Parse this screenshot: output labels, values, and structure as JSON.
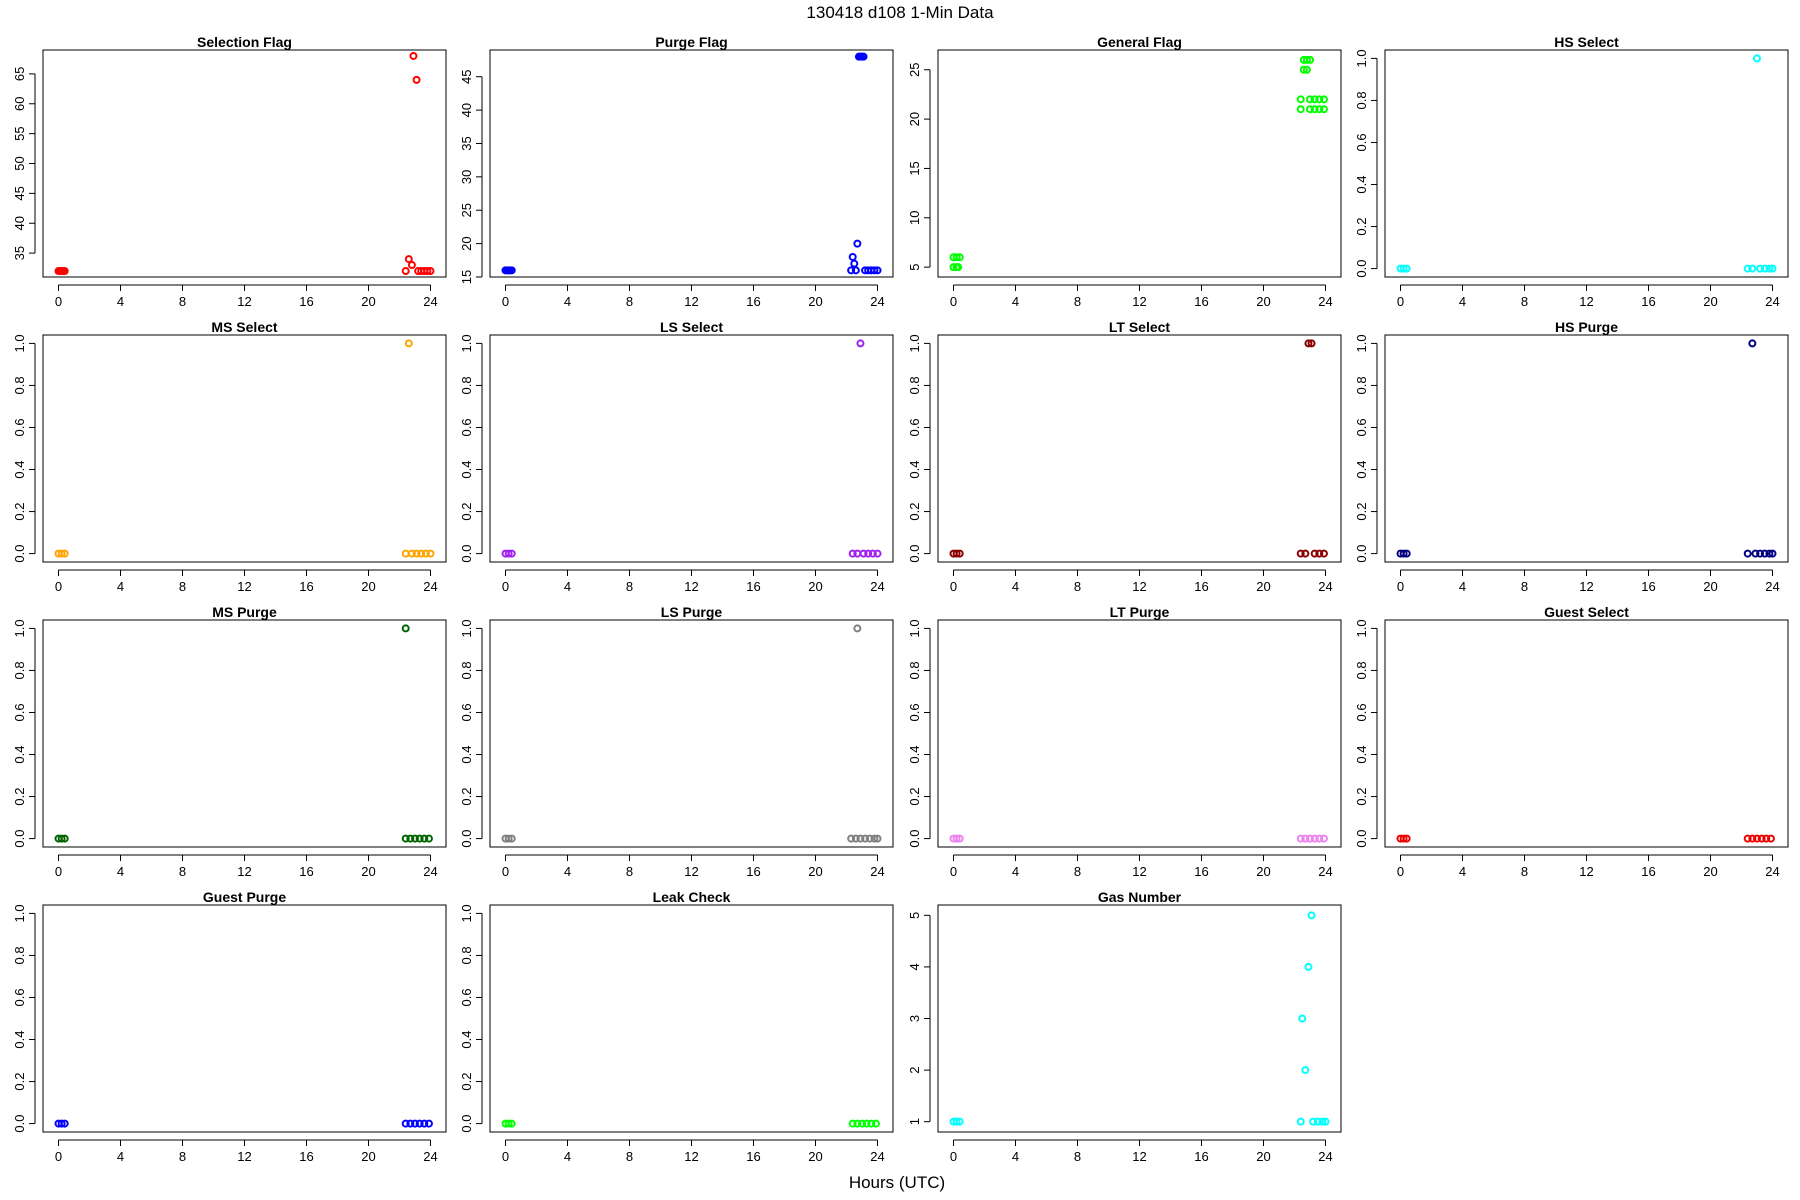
{
  "figure": {
    "title": "130418   d108   1-Min Data",
    "xlabel": "Hours (UTC)"
  },
  "chart_data": [
    {
      "type": "scatter",
      "title": "Selection Flag",
      "color": "#ff0000",
      "xlim": [
        -1,
        25
      ],
      "ylim": [
        31,
        69
      ],
      "x_ticks": [
        0,
        4,
        8,
        12,
        16,
        20,
        24
      ],
      "y_ticks": [
        35,
        40,
        45,
        50,
        55,
        60,
        65
      ],
      "points": [
        [
          0.0,
          32
        ],
        [
          0.1,
          32
        ],
        [
          0.2,
          32
        ],
        [
          0.3,
          32
        ],
        [
          0.4,
          32
        ],
        [
          22.4,
          32
        ],
        [
          22.6,
          34
        ],
        [
          22.8,
          33
        ],
        [
          22.9,
          68
        ],
        [
          23.1,
          64
        ],
        [
          23.2,
          32
        ],
        [
          23.4,
          32
        ],
        [
          23.6,
          32
        ],
        [
          23.8,
          32
        ],
        [
          24.0,
          32
        ]
      ]
    },
    {
      "type": "scatter",
      "title": "Purge Flag",
      "color": "#0000ff",
      "xlim": [
        -1,
        25
      ],
      "ylim": [
        15,
        49
      ],
      "x_ticks": [
        0,
        4,
        8,
        12,
        16,
        20,
        24
      ],
      "y_ticks": [
        15,
        20,
        25,
        30,
        35,
        40,
        45
      ],
      "points": [
        [
          0.0,
          16
        ],
        [
          0.1,
          16
        ],
        [
          0.2,
          16
        ],
        [
          0.3,
          16
        ],
        [
          0.4,
          16
        ],
        [
          22.3,
          16
        ],
        [
          22.4,
          18
        ],
        [
          22.5,
          17
        ],
        [
          22.6,
          16
        ],
        [
          22.7,
          20
        ],
        [
          22.8,
          48
        ],
        [
          22.9,
          48
        ],
        [
          23.0,
          48
        ],
        [
          23.1,
          48
        ],
        [
          23.2,
          16
        ],
        [
          23.4,
          16
        ],
        [
          23.6,
          16
        ],
        [
          23.8,
          16
        ],
        [
          24.0,
          16
        ]
      ]
    },
    {
      "type": "scatter",
      "title": "General Flag",
      "color": "#00ff00",
      "xlim": [
        -1,
        25
      ],
      "ylim": [
        4,
        27
      ],
      "x_ticks": [
        0,
        4,
        8,
        12,
        16,
        20,
        24
      ],
      "y_ticks": [
        5,
        10,
        15,
        20,
        25
      ],
      "points": [
        [
          0.0,
          5
        ],
        [
          0.2,
          5
        ],
        [
          0.3,
          5
        ],
        [
          0.0,
          6
        ],
        [
          0.2,
          6
        ],
        [
          0.4,
          6
        ],
        [
          22.4,
          22
        ],
        [
          22.4,
          21
        ],
        [
          22.6,
          26
        ],
        [
          22.8,
          26
        ],
        [
          23.0,
          26
        ],
        [
          22.6,
          25
        ],
        [
          22.8,
          25
        ],
        [
          23.0,
          22
        ],
        [
          23.3,
          22
        ],
        [
          23.6,
          22
        ],
        [
          23.9,
          22
        ],
        [
          23.0,
          21
        ],
        [
          23.3,
          21
        ],
        [
          23.6,
          21
        ],
        [
          23.9,
          21
        ]
      ]
    },
    {
      "type": "scatter",
      "title": "HS Select",
      "color": "#00ffff",
      "xlim": [
        -1,
        25
      ],
      "ylim": [
        -0.04,
        1.04
      ],
      "x_ticks": [
        0,
        4,
        8,
        12,
        16,
        20,
        24
      ],
      "y_ticks": [
        0.0,
        0.2,
        0.4,
        0.6,
        0.8,
        1.0
      ],
      "points": [
        [
          0.0,
          0
        ],
        [
          0.2,
          0
        ],
        [
          0.4,
          0
        ],
        [
          22.4,
          0
        ],
        [
          22.7,
          0
        ],
        [
          23.0,
          1
        ],
        [
          23.2,
          0
        ],
        [
          23.5,
          0
        ],
        [
          23.8,
          0
        ],
        [
          24.0,
          0
        ]
      ]
    },
    {
      "type": "scatter",
      "title": "MS Select",
      "color": "#ffa500",
      "xlim": [
        -1,
        25
      ],
      "ylim": [
        -0.04,
        1.04
      ],
      "x_ticks": [
        0,
        4,
        8,
        12,
        16,
        20,
        24
      ],
      "y_ticks": [
        0.0,
        0.2,
        0.4,
        0.6,
        0.8,
        1.0
      ],
      "points": [
        [
          0.0,
          0
        ],
        [
          0.2,
          0
        ],
        [
          0.4,
          0
        ],
        [
          22.4,
          0
        ],
        [
          22.6,
          1
        ],
        [
          22.8,
          0
        ],
        [
          23.1,
          0
        ],
        [
          23.4,
          0
        ],
        [
          23.7,
          0
        ],
        [
          24.0,
          0
        ]
      ]
    },
    {
      "type": "scatter",
      "title": "LS Select",
      "color": "#a020f0",
      "xlim": [
        -1,
        25
      ],
      "ylim": [
        -0.04,
        1.04
      ],
      "x_ticks": [
        0,
        4,
        8,
        12,
        16,
        20,
        24
      ],
      "y_ticks": [
        0.0,
        0.2,
        0.4,
        0.6,
        0.8,
        1.0
      ],
      "points": [
        [
          0.0,
          0
        ],
        [
          0.2,
          0
        ],
        [
          0.4,
          0
        ],
        [
          22.4,
          0
        ],
        [
          22.7,
          0
        ],
        [
          22.9,
          1
        ],
        [
          23.1,
          0
        ],
        [
          23.4,
          0
        ],
        [
          23.7,
          0
        ],
        [
          24.0,
          0
        ]
      ]
    },
    {
      "type": "scatter",
      "title": "LT Select",
      "color": "#8b0000",
      "xlim": [
        -1,
        25
      ],
      "ylim": [
        -0.04,
        1.04
      ],
      "x_ticks": [
        0,
        4,
        8,
        12,
        16,
        20,
        24
      ],
      "y_ticks": [
        0.0,
        0.2,
        0.4,
        0.6,
        0.8,
        1.0
      ],
      "points": [
        [
          0.0,
          0
        ],
        [
          0.2,
          0
        ],
        [
          0.4,
          0
        ],
        [
          22.4,
          0
        ],
        [
          22.7,
          0
        ],
        [
          22.9,
          1
        ],
        [
          23.1,
          1
        ],
        [
          23.3,
          0
        ],
        [
          23.6,
          0
        ],
        [
          23.9,
          0
        ]
      ]
    },
    {
      "type": "scatter",
      "title": "HS Purge",
      "color": "#000080",
      "xlim": [
        -1,
        25
      ],
      "ylim": [
        -0.04,
        1.04
      ],
      "x_ticks": [
        0,
        4,
        8,
        12,
        16,
        20,
        24
      ],
      "y_ticks": [
        0.0,
        0.2,
        0.4,
        0.6,
        0.8,
        1.0
      ],
      "points": [
        [
          0.0,
          0
        ],
        [
          0.2,
          0
        ],
        [
          0.4,
          0
        ],
        [
          22.4,
          0
        ],
        [
          22.7,
          1
        ],
        [
          22.9,
          0
        ],
        [
          23.2,
          0
        ],
        [
          23.5,
          0
        ],
        [
          23.8,
          0
        ],
        [
          24.0,
          0
        ]
      ]
    },
    {
      "type": "scatter",
      "title": "MS Purge",
      "color": "#006400",
      "xlim": [
        -1,
        25
      ],
      "ylim": [
        -0.04,
        1.04
      ],
      "x_ticks": [
        0,
        4,
        8,
        12,
        16,
        20,
        24
      ],
      "y_ticks": [
        0.0,
        0.2,
        0.4,
        0.6,
        0.8,
        1.0
      ],
      "points": [
        [
          0.0,
          0
        ],
        [
          0.2,
          0
        ],
        [
          0.4,
          0
        ],
        [
          22.4,
          0
        ],
        [
          22.4,
          1
        ],
        [
          22.7,
          0
        ],
        [
          23.0,
          0
        ],
        [
          23.3,
          0
        ],
        [
          23.6,
          0
        ],
        [
          23.9,
          0
        ]
      ]
    },
    {
      "type": "scatter",
      "title": "LS Purge",
      "color": "#808080",
      "xlim": [
        -1,
        25
      ],
      "ylim": [
        -0.04,
        1.04
      ],
      "x_ticks": [
        0,
        4,
        8,
        12,
        16,
        20,
        24
      ],
      "y_ticks": [
        0.0,
        0.2,
        0.4,
        0.6,
        0.8,
        1.0
      ],
      "points": [
        [
          0.0,
          0
        ],
        [
          0.2,
          0
        ],
        [
          0.4,
          0
        ],
        [
          22.3,
          0
        ],
        [
          22.6,
          0
        ],
        [
          22.7,
          1
        ],
        [
          22.9,
          0
        ],
        [
          23.2,
          0
        ],
        [
          23.5,
          0
        ],
        [
          23.8,
          0
        ],
        [
          24.0,
          0
        ]
      ]
    },
    {
      "type": "scatter",
      "title": "LT Purge",
      "color": "#ee82ee",
      "xlim": [
        -1,
        25
      ],
      "ylim": [
        -0.04,
        1.04
      ],
      "x_ticks": [
        0,
        4,
        8,
        12,
        16,
        20,
        24
      ],
      "y_ticks": [
        0.0,
        0.2,
        0.4,
        0.6,
        0.8,
        1.0
      ],
      "points": [
        [
          0.0,
          0
        ],
        [
          0.2,
          0
        ],
        [
          0.4,
          0
        ],
        [
          22.4,
          0
        ],
        [
          22.7,
          0
        ],
        [
          23.0,
          0
        ],
        [
          23.3,
          0
        ],
        [
          23.6,
          0
        ],
        [
          23.9,
          0
        ]
      ]
    },
    {
      "type": "scatter",
      "title": "Guest Select",
      "color": "#ee0000",
      "xlim": [
        -1,
        25
      ],
      "ylim": [
        -0.04,
        1.04
      ],
      "x_ticks": [
        0,
        4,
        8,
        12,
        16,
        20,
        24
      ],
      "y_ticks": [
        0.0,
        0.2,
        0.4,
        0.6,
        0.8,
        1.0
      ],
      "points": [
        [
          0.0,
          0
        ],
        [
          0.2,
          0
        ],
        [
          0.4,
          0
        ],
        [
          22.4,
          0
        ],
        [
          22.7,
          0
        ],
        [
          23.0,
          0
        ],
        [
          23.3,
          0
        ],
        [
          23.6,
          0
        ],
        [
          23.9,
          0
        ]
      ]
    },
    {
      "type": "scatter",
      "title": "Guest Purge",
      "color": "#0000ff",
      "xlim": [
        -1,
        25
      ],
      "ylim": [
        -0.04,
        1.04
      ],
      "x_ticks": [
        0,
        4,
        8,
        12,
        16,
        20,
        24
      ],
      "y_ticks": [
        0.0,
        0.2,
        0.4,
        0.6,
        0.8,
        1.0
      ],
      "points": [
        [
          0.0,
          0
        ],
        [
          0.2,
          0
        ],
        [
          0.4,
          0
        ],
        [
          22.4,
          0
        ],
        [
          22.7,
          0
        ],
        [
          23.0,
          0
        ],
        [
          23.3,
          0
        ],
        [
          23.6,
          0
        ],
        [
          23.9,
          0
        ]
      ]
    },
    {
      "type": "scatter",
      "title": "Leak Check",
      "color": "#00ff00",
      "xlim": [
        -1,
        25
      ],
      "ylim": [
        -0.04,
        1.04
      ],
      "x_ticks": [
        0,
        4,
        8,
        12,
        16,
        20,
        24
      ],
      "y_ticks": [
        0.0,
        0.2,
        0.4,
        0.6,
        0.8,
        1.0
      ],
      "points": [
        [
          0.0,
          0
        ],
        [
          0.2,
          0
        ],
        [
          0.4,
          0
        ],
        [
          22.4,
          0
        ],
        [
          22.7,
          0
        ],
        [
          23.0,
          0
        ],
        [
          23.3,
          0
        ],
        [
          23.6,
          0
        ],
        [
          23.9,
          0
        ]
      ]
    },
    {
      "type": "scatter",
      "title": "Gas Number",
      "color": "#00ffff",
      "xlim": [
        -1,
        25
      ],
      "ylim": [
        0.8,
        5.2
      ],
      "x_ticks": [
        0,
        4,
        8,
        12,
        16,
        20,
        24
      ],
      "y_ticks": [
        1,
        2,
        3,
        4,
        5
      ],
      "points": [
        [
          0.0,
          1
        ],
        [
          0.2,
          1
        ],
        [
          0.4,
          1
        ],
        [
          22.4,
          1
        ],
        [
          22.5,
          3
        ],
        [
          22.7,
          2
        ],
        [
          22.9,
          4
        ],
        [
          23.1,
          5
        ],
        [
          23.2,
          1
        ],
        [
          23.5,
          1
        ],
        [
          23.8,
          1
        ],
        [
          24.0,
          1
        ]
      ]
    }
  ]
}
